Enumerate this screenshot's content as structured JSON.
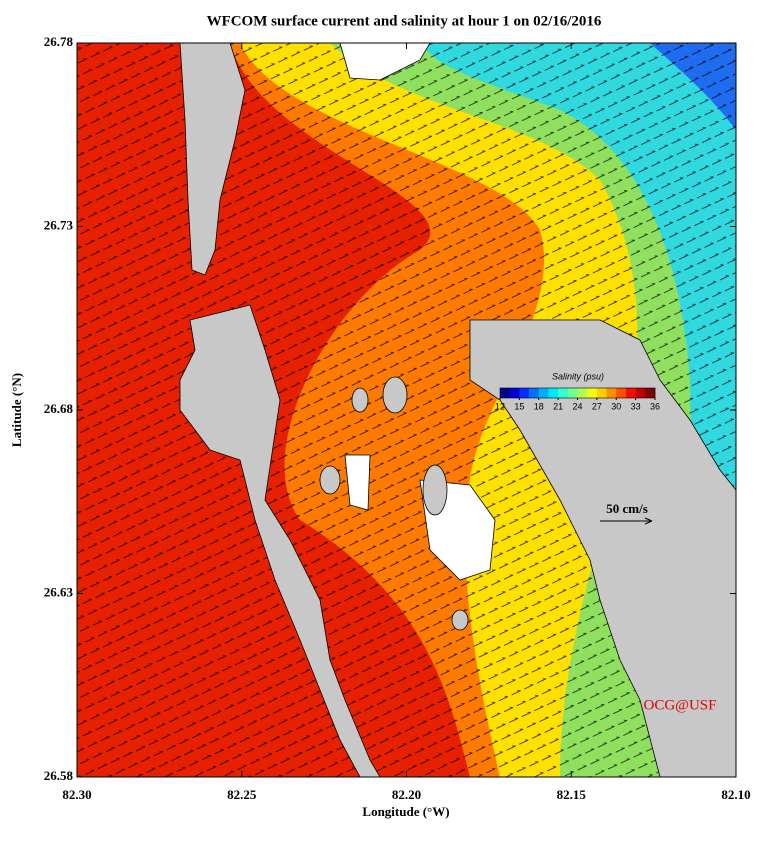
{
  "chart_data": {
    "type": "map",
    "title": "WFCOM surface current and salinity at hour 1 on 02/16/2016",
    "x_label": "Longitude (°W)",
    "y_label": "Latitude (°N)",
    "xlim": [
      82.3,
      82.1
    ],
    "ylim": [
      26.58,
      26.78
    ],
    "xticks": [
      {
        "value": 82.3,
        "label": "82.30"
      },
      82.25,
      {
        "value": 82.2,
        "label": "82.20"
      },
      82.15,
      {
        "value": 82.1,
        "label": "82.10"
      }
    ],
    "yticks": [
      26.58,
      26.63,
      26.68,
      26.73,
      26.78
    ],
    "colorbar": {
      "label": "Salinity (psu)",
      "lim": [
        12,
        36
      ],
      "ticks": [
        12,
        15,
        18,
        21,
        24,
        27,
        30,
        33,
        36
      ],
      "colors": [
        "#00008f",
        "#0000d0",
        "#0030ff",
        "#0070ff",
        "#00b0ff",
        "#00e8ff",
        "#30ffd0",
        "#70ff90",
        "#b0ff50",
        "#f0ff10",
        "#ffd000",
        "#ff9000",
        "#ff5000",
        "#f01000",
        "#c00000",
        "#800000"
      ]
    },
    "scale_label": "50 cm/s",
    "credit": "OCG@USF"
  }
}
